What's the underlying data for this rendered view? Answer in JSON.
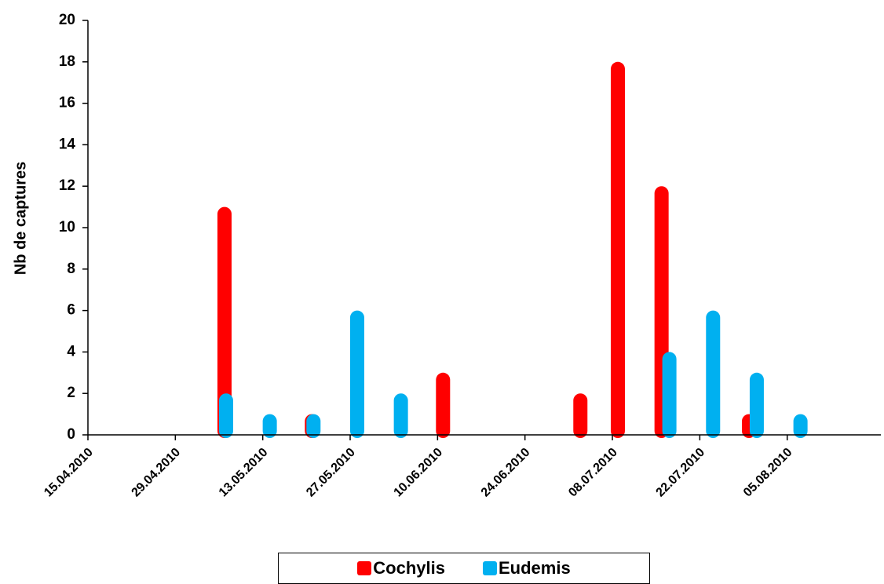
{
  "chart_data": {
    "type": "bar",
    "ylabel": "Nb de captures",
    "xlabel": "",
    "ylim": [
      0,
      20
    ],
    "yticks": [
      0,
      2,
      4,
      6,
      8,
      10,
      12,
      14,
      16,
      18,
      20
    ],
    "xlim": [
      "2010-04-15",
      "2010-08-20"
    ],
    "xtick_labels": [
      "15.04.2010",
      "29.04.2010",
      "13.05.2010",
      "27.05.2010",
      "10.06.2010",
      "24.06.2010",
      "08.07.2010",
      "22.07.2010",
      "05.08.2010"
    ],
    "xtick_dates": [
      "2010-04-15",
      "2010-04-29",
      "2010-05-13",
      "2010-05-27",
      "2010-06-10",
      "2010-06-24",
      "2010-07-08",
      "2010-07-22",
      "2010-08-05"
    ],
    "grid": false,
    "legend_position": "bottom",
    "series": [
      {
        "name": "Cochylis",
        "color": "#ff0000",
        "points": [
          {
            "date": "2010-05-07",
            "value": 11
          },
          {
            "date": "2010-05-21",
            "value": 1
          },
          {
            "date": "2010-06-11",
            "value": 3
          },
          {
            "date": "2010-07-03",
            "value": 2
          },
          {
            "date": "2010-07-09",
            "value": 18
          },
          {
            "date": "2010-07-16",
            "value": 12
          },
          {
            "date": "2010-07-30",
            "value": 1
          }
        ]
      },
      {
        "name": "Eudemis",
        "color": "#00b0f0",
        "points": [
          {
            "date": "2010-05-07",
            "value": 2
          },
          {
            "date": "2010-05-14",
            "value": 1
          },
          {
            "date": "2010-05-21",
            "value": 1
          },
          {
            "date": "2010-05-28",
            "value": 6
          },
          {
            "date": "2010-06-04",
            "value": 2
          },
          {
            "date": "2010-07-17",
            "value": 4
          },
          {
            "date": "2010-07-24",
            "value": 6
          },
          {
            "date": "2010-07-31",
            "value": 3
          },
          {
            "date": "2010-08-07",
            "value": 1
          }
        ]
      }
    ]
  }
}
